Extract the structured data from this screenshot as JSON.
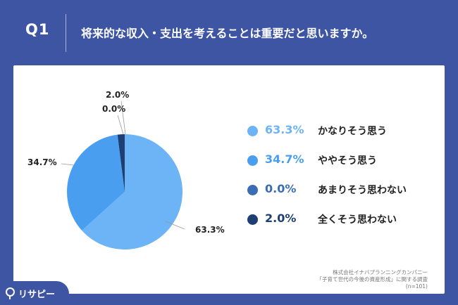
{
  "header": {
    "q_label": "Q1",
    "question": "将来的な収入・支出を考えることは重要だと思いますか。"
  },
  "chart_data": {
    "type": "pie",
    "title": "",
    "slices": [
      {
        "label": "かなりそう思う",
        "value": 63.3,
        "value_label": "63.3%",
        "color": "#6cb4f6"
      },
      {
        "label": "ややそう思う",
        "value": 34.7,
        "value_label": "34.7%",
        "color": "#4a9ef0"
      },
      {
        "label": "あまりそう思わない",
        "value": 0.0,
        "value_label": "0.0%",
        "color": "#3a6db5"
      },
      {
        "label": "全くそう思わない",
        "value": 2.0,
        "value_label": "2.0%",
        "color": "#1d3f73"
      }
    ],
    "legend_position": "right"
  },
  "source": {
    "line1": "株式会社イナバプランニングカンパニー",
    "line2": "「子育て世代の今後の資産形成」に関する調査",
    "line3": "(n=101)"
  },
  "logo": {
    "text": "リサピー",
    "icon": "magnifier-pin-icon"
  }
}
